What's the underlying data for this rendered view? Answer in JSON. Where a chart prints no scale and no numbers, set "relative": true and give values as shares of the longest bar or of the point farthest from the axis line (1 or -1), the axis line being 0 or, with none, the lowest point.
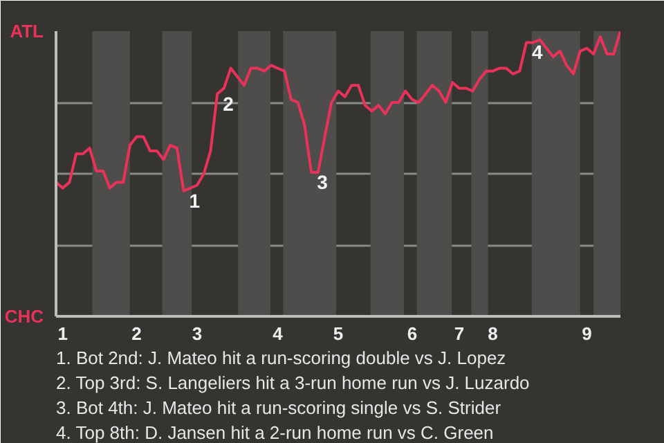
{
  "chart_data": {
    "type": "line",
    "relative": true,
    "categories": [
      null,
      "1",
      null,
      null,
      null,
      null,
      null,
      null,
      null,
      null,
      null,
      null,
      "2",
      null,
      null,
      null,
      null,
      null,
      null,
      null,
      null,
      "3",
      null,
      null,
      null,
      null,
      null,
      null,
      null,
      null,
      null,
      null,
      null,
      "4",
      null,
      null,
      null,
      null,
      null,
      null,
      null,
      null,
      "5",
      null,
      null,
      null,
      null,
      null,
      null,
      null,
      null,
      null,
      null,
      "6",
      null,
      null,
      null,
      null,
      null,
      null,
      "7",
      null,
      null,
      null,
      null,
      "8",
      null,
      null,
      null,
      null,
      null,
      null,
      null,
      null,
      null,
      null,
      null,
      null,
      null,
      "9",
      null,
      null,
      null,
      null,
      null
    ],
    "series": [
      {
        "color": "#e8325a",
        "values": [
          0.47,
          0.45,
          0.47,
          0.57,
          0.57,
          0.59,
          0.51,
          0.51,
          0.45,
          0.47,
          0.47,
          0.6,
          0.63,
          0.63,
          0.58,
          0.58,
          0.55,
          0.6,
          0.59,
          0.44,
          0.45,
          0.46,
          0.5,
          0.58,
          0.78,
          0.8,
          0.87,
          0.84,
          0.81,
          0.87,
          0.87,
          0.86,
          0.88,
          0.87,
          0.86,
          0.76,
          0.75,
          0.67,
          0.505,
          0.505,
          0.63,
          0.75,
          0.79,
          0.77,
          0.81,
          0.81,
          0.74,
          0.72,
          0.74,
          0.71,
          0.75,
          0.75,
          0.79,
          0.76,
          0.75,
          0.78,
          0.81,
          0.79,
          0.75,
          0.82,
          0.8,
          0.8,
          0.79,
          0.83,
          0.86,
          0.86,
          0.87,
          0.87,
          0.85,
          0.86,
          0.96,
          0.96,
          0.97,
          0.94,
          0.91,
          0.93,
          0.88,
          0.85,
          0.93,
          0.94,
          0.92,
          0.98,
          0.92,
          0.92,
          1.0
        ]
      }
    ],
    "grid": "y",
    "marker": "none",
    "line_style": "solid",
    "annotations": [
      "ATL",
      "CHC",
      {
        "text": "1",
        "y": 0.44
      },
      {
        "text": "2",
        "y": 0.78
      },
      {
        "text": "3",
        "y": 0.505
      },
      {
        "text": "4",
        "y": 0.96
      },
      "1. Bot 2nd: J. Mateo hit a run-scoring double vs J. Lopez",
      "2. Top 3rd: S. Langeliers hit a 3-run home run vs J. Luzardo",
      "3. Bot 4th: J. Mateo hit a run-scoring single vs S. Strider",
      "4. Top 8th: D. Jansen hit a 2-run home run vs C. Green"
    ]
  }
}
